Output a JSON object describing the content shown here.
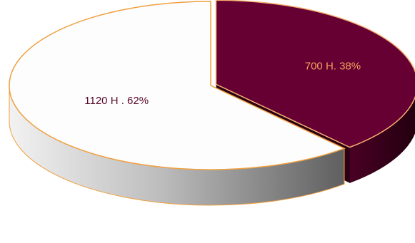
{
  "chart_data": {
    "type": "pie",
    "style": "3d-exploded",
    "title": "",
    "legend": "none",
    "slices": [
      {
        "value": 700,
        "percent": 38,
        "label": "700 H. 38%",
        "color": "#660033",
        "side_color": "#3d0020",
        "label_color": "#f5a25a",
        "exploded": true
      },
      {
        "value": 1120,
        "percent": 62,
        "label": "1120 H . 62%",
        "color": "#fdfdfd",
        "side_color": "#8a8a8a",
        "label_color": "#5a0a2c",
        "exploded": false
      }
    ],
    "outline_color": "#f0a040"
  }
}
